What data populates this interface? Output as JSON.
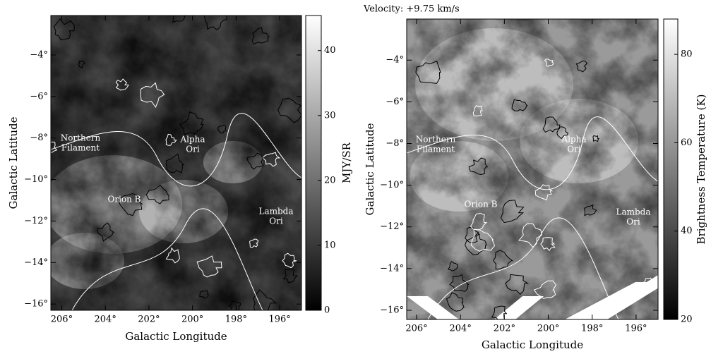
{
  "chart_data": [
    {
      "type": "heatmap",
      "colormap": "gray",
      "x_label": "Galactic Longitude",
      "y_label": "Galactic Latitude",
      "colorbar_label": "MJY/SR",
      "xlim": [
        206.5,
        195
      ],
      "ylim": [
        -16.3,
        -2.1
      ],
      "clim": [
        0,
        45.4
      ],
      "xticks": [
        {
          "value": 206,
          "label": "206°"
        },
        {
          "value": 204,
          "label": "204°"
        },
        {
          "value": 202,
          "label": "202°"
        },
        {
          "value": 200,
          "label": "200°"
        },
        {
          "value": 198,
          "label": "198°"
        },
        {
          "value": 196,
          "label": "196°"
        }
      ],
      "yticks": [
        {
          "value": -4,
          "label": "−4°"
        },
        {
          "value": -6,
          "label": "−6°"
        },
        {
          "value": -8,
          "label": "−8°"
        },
        {
          "value": -10,
          "label": "−10°"
        },
        {
          "value": -12,
          "label": "−12°"
        },
        {
          "value": -14,
          "label": "−14°"
        },
        {
          "value": -16,
          "label": "−16°"
        }
      ],
      "cticks": [
        0,
        10,
        20,
        30,
        40
      ],
      "annotations": [
        {
          "lines": [
            "Northern",
            "Filament"
          ]
        },
        {
          "lines": [
            "Alpha",
            "Ori"
          ]
        },
        {
          "lines": [
            "Orion B"
          ]
        },
        {
          "lines": [
            "Lambda",
            "Ori"
          ]
        }
      ]
    },
    {
      "type": "heatmap",
      "colormap": "gray",
      "title": "Velocity: +9.75 km/s",
      "x_label": "Galactic Longitude",
      "y_label": "Galactic Latitude",
      "colorbar_label": "Brightness Temperature (K)",
      "xlim": [
        206.45,
        195
      ],
      "ylim": [
        -16.44,
        -2.03
      ],
      "clim": [
        20,
        88
      ],
      "xticks": [
        {
          "value": 206,
          "label": "206°"
        },
        {
          "value": 204,
          "label": "204°"
        },
        {
          "value": 202,
          "label": "202°"
        },
        {
          "value": 200,
          "label": "200°"
        },
        {
          "value": 198,
          "label": "198°"
        },
        {
          "value": 196,
          "label": "196°"
        }
      ],
      "yticks": [
        {
          "value": -4,
          "label": "−4°"
        },
        {
          "value": -6,
          "label": "−6°"
        },
        {
          "value": -8,
          "label": "−8°"
        },
        {
          "value": -10,
          "label": "−10°"
        },
        {
          "value": -12,
          "label": "−12°"
        },
        {
          "value": -14,
          "label": "−14°"
        },
        {
          "value": -16,
          "label": "−16°"
        }
      ],
      "cticks": [
        20,
        40,
        60,
        80
      ],
      "annotations": [
        {
          "lines": [
            "Northern",
            "Filament"
          ]
        },
        {
          "lines": [
            "Alpha",
            "Ori"
          ]
        },
        {
          "lines": [
            "Orion B"
          ]
        },
        {
          "lines": [
            "Lambda",
            "Ori"
          ]
        }
      ]
    }
  ]
}
